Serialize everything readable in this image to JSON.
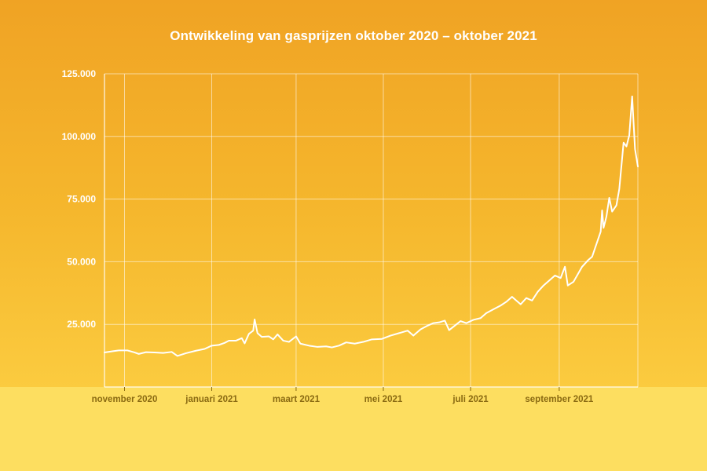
{
  "title": "Ontwikkeling van gasprijzen oktober 2020 – oktober 2021",
  "colors": {
    "line": "#ffffff",
    "grid": "#ffffff",
    "background_top": "#f0a324",
    "background_bottom": "#fdde60",
    "tick_label_x": "#8a6a12"
  },
  "chart_data": {
    "type": "line",
    "title": "Ontwikkeling van gasprijzen oktober 2020 – oktober 2021",
    "xlabel": "",
    "ylabel": "",
    "x_axis": {
      "type": "date",
      "range": [
        "2020-10-18",
        "2021-10-26"
      ],
      "ticks": [
        {
          "date": "2020-11-01",
          "label": "november 2020"
        },
        {
          "date": "2021-01-01",
          "label": "januari 2021"
        },
        {
          "date": "2021-03-01",
          "label": "maart 2021"
        },
        {
          "date": "2021-05-01",
          "label": "mei 2021"
        },
        {
          "date": "2021-07-01",
          "label": "juli 2021"
        },
        {
          "date": "2021-09-01",
          "label": "september 2021"
        }
      ]
    },
    "y_axis": {
      "range": [
        0,
        125000
      ],
      "ticks": [
        {
          "value": 25000,
          "label": "25.000"
        },
        {
          "value": 50000,
          "label": "50.000"
        },
        {
          "value": 75000,
          "label": "75.000"
        },
        {
          "value": 100000,
          "label": "100.000"
        },
        {
          "value": 125000,
          "label": "125.000"
        }
      ]
    },
    "grid": true,
    "series": [
      {
        "points": [
          [
            "2020-10-18",
            13800
          ],
          [
            "2020-10-24",
            14300
          ],
          [
            "2020-10-28",
            14600
          ],
          [
            "2020-11-03",
            14600
          ],
          [
            "2020-11-08",
            13800
          ],
          [
            "2020-11-11",
            13200
          ],
          [
            "2020-11-16",
            13900
          ],
          [
            "2020-11-22",
            13800
          ],
          [
            "2020-11-28",
            13600
          ],
          [
            "2020-12-04",
            14000
          ],
          [
            "2020-12-08",
            12400
          ],
          [
            "2020-12-14",
            13500
          ],
          [
            "2020-12-21",
            14500
          ],
          [
            "2020-12-27",
            15200
          ],
          [
            "2021-01-01",
            16500
          ],
          [
            "2021-01-06",
            16800
          ],
          [
            "2021-01-10",
            17600
          ],
          [
            "2021-01-13",
            18500
          ],
          [
            "2021-01-18",
            18500
          ],
          [
            "2021-01-22",
            19500
          ],
          [
            "2021-01-24",
            17400
          ],
          [
            "2021-01-27",
            21200
          ],
          [
            "2021-01-30",
            22500
          ],
          [
            "2021-01-31",
            27000
          ],
          [
            "2021-02-02",
            21500
          ],
          [
            "2021-02-05",
            20000
          ],
          [
            "2021-02-10",
            20200
          ],
          [
            "2021-02-13",
            19000
          ],
          [
            "2021-02-16",
            21000
          ],
          [
            "2021-02-20",
            18500
          ],
          [
            "2021-02-24",
            18000
          ],
          [
            "2021-03-01",
            20200
          ],
          [
            "2021-03-04",
            17300
          ],
          [
            "2021-03-10",
            16500
          ],
          [
            "2021-03-16",
            16000
          ],
          [
            "2021-03-22",
            16200
          ],
          [
            "2021-03-26",
            15800
          ],
          [
            "2021-03-31",
            16500
          ],
          [
            "2021-04-05",
            17800
          ],
          [
            "2021-04-11",
            17300
          ],
          [
            "2021-04-17",
            18000
          ],
          [
            "2021-04-23",
            19000
          ],
          [
            "2021-04-30",
            19200
          ],
          [
            "2021-05-06",
            20500
          ],
          [
            "2021-05-12",
            21500
          ],
          [
            "2021-05-18",
            22500
          ],
          [
            "2021-05-22",
            20500
          ],
          [
            "2021-05-27",
            23000
          ],
          [
            "2021-06-01",
            24500
          ],
          [
            "2021-06-05",
            25500
          ],
          [
            "2021-06-09",
            25800
          ],
          [
            "2021-06-13",
            26500
          ],
          [
            "2021-06-16",
            22700
          ],
          [
            "2021-06-20",
            24500
          ],
          [
            "2021-06-24",
            26300
          ],
          [
            "2021-06-28",
            25500
          ],
          [
            "2021-07-03",
            26800
          ],
          [
            "2021-07-08",
            27500
          ],
          [
            "2021-07-12",
            29500
          ],
          [
            "2021-07-17",
            31000
          ],
          [
            "2021-07-22",
            32500
          ],
          [
            "2021-07-26",
            34000
          ],
          [
            "2021-07-30",
            36000
          ],
          [
            "2021-08-02",
            34500
          ],
          [
            "2021-08-05",
            33000
          ],
          [
            "2021-08-09",
            35500
          ],
          [
            "2021-08-13",
            34500
          ],
          [
            "2021-08-17",
            38000
          ],
          [
            "2021-08-21",
            40500
          ],
          [
            "2021-08-25",
            42500
          ],
          [
            "2021-08-29",
            44500
          ],
          [
            "2021-09-02",
            43500
          ],
          [
            "2021-09-05",
            48000
          ],
          [
            "2021-09-07",
            40500
          ],
          [
            "2021-09-11",
            42000
          ],
          [
            "2021-09-14",
            45000
          ],
          [
            "2021-09-17",
            48000
          ],
          [
            "2021-09-21",
            50500
          ],
          [
            "2021-09-24",
            52000
          ],
          [
            "2021-09-27",
            57000
          ],
          [
            "2021-09-30",
            62000
          ],
          [
            "2021-10-01",
            70500
          ],
          [
            "2021-10-02",
            63500
          ],
          [
            "2021-10-04",
            68000
          ],
          [
            "2021-10-06",
            75500
          ],
          [
            "2021-10-08",
            70000
          ],
          [
            "2021-10-11",
            72500
          ],
          [
            "2021-10-13",
            79000
          ],
          [
            "2021-10-16",
            97500
          ],
          [
            "2021-10-18",
            96000
          ],
          [
            "2021-10-20",
            100500
          ],
          [
            "2021-10-22",
            116000
          ],
          [
            "2021-10-24",
            95000
          ],
          [
            "2021-10-26",
            88000
          ]
        ]
      }
    ]
  }
}
